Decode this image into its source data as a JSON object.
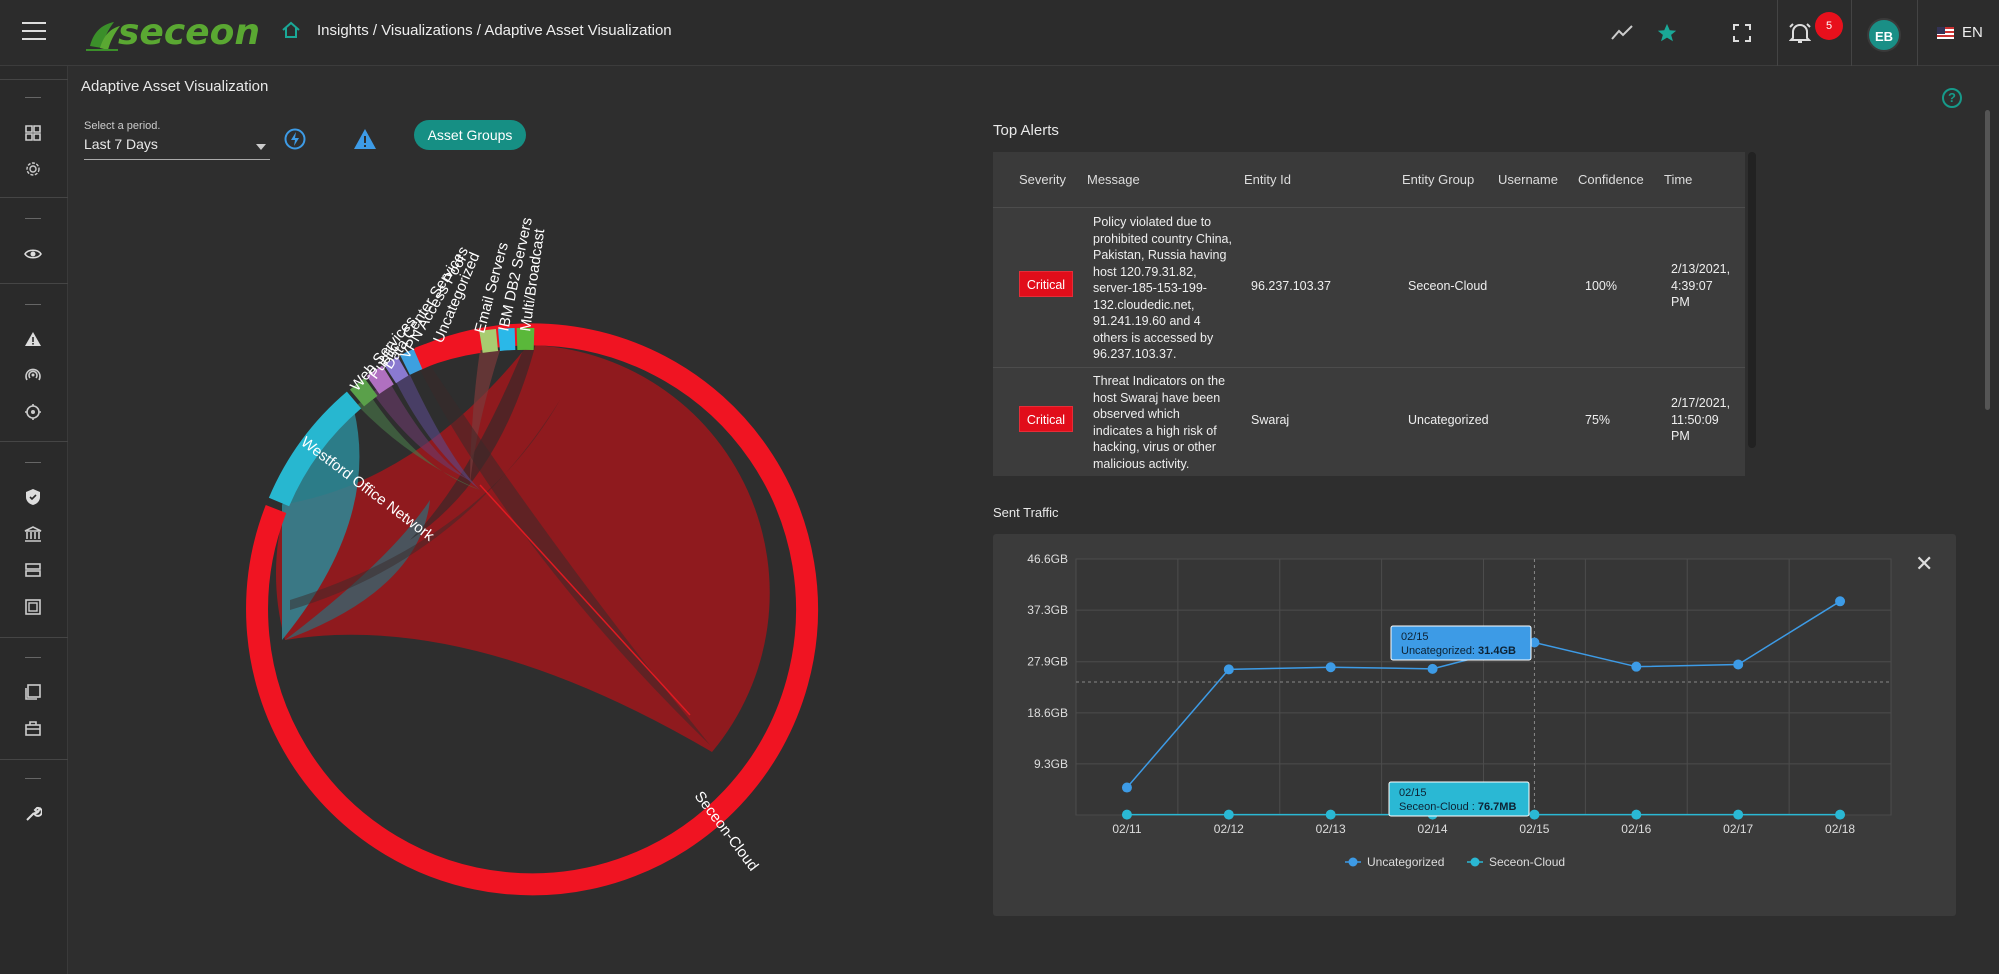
{
  "header": {
    "breadcrumb": "Insights / Visualizations / Adaptive Asset Visualization",
    "notification_count": "5",
    "user_initials": "EB",
    "language": "EN",
    "brand_text": "seceon",
    "brand_color": "#5aa832"
  },
  "page": {
    "title": "Adaptive Asset Visualization",
    "period_label": "Select a period.",
    "period_value": "Last 7 Days",
    "asset_groups_label": "Asset Groups"
  },
  "chord": {
    "groups": [
      "Multi/Broadcast",
      "IBM DB2 Servers",
      "Email Servers",
      "Uncategorized",
      "VPN Access Pool",
      "Data Center Services",
      "Public",
      "Web Services",
      "Westford Office Network",
      "Seceon-Cloud"
    ],
    "colors": {
      "seceon_cloud": "#f01422",
      "westford": "#27b7d0",
      "chord_red": "#8f1a1e",
      "chord_teal": "#2c8a98"
    }
  },
  "alerts": {
    "title": "Top Alerts",
    "columns": [
      "Severity",
      "Message",
      "Entity Id",
      "Entity Group",
      "Username",
      "Confidence",
      "Time"
    ],
    "rows": [
      {
        "severity": "Critical",
        "message": [
          "Policy violated due to",
          "prohibited country China,",
          "Pakistan, Russia having",
          "host 120.79.31.82,",
          "server-185-153-199-",
          "132.cloudedic.net,",
          "91.241.19.60 and 4",
          "others is accessed by",
          "96.237.103.37."
        ],
        "entity_id": "96.237.103.37",
        "entity_group": "Seceon-Cloud",
        "username": "",
        "confidence": "100%",
        "time": [
          "2/13/2021,",
          "4:39:07",
          "PM"
        ]
      },
      {
        "severity": "Critical",
        "message": [
          "Threat Indicators on the",
          "host Swaraj have been",
          "observed which",
          "indicates a high risk of",
          "hacking, virus or other",
          "malicious activity."
        ],
        "entity_id": "Swaraj",
        "entity_group": "Uncategorized",
        "username": "",
        "confidence": "75%",
        "time": [
          "2/17/2021,",
          "11:50:09",
          "PM"
        ]
      }
    ]
  },
  "sent_traffic": {
    "title": "Sent Traffic",
    "tooltip1": {
      "date": "02/15",
      "label": "Uncategorized:",
      "value": "31.4GB"
    },
    "tooltip2": {
      "date": "02/15",
      "label": "Seceon-Cloud :",
      "value": "76.7MB"
    }
  },
  "chart_data": {
    "type": "line",
    "title": "Sent Traffic",
    "categories": [
      "02/11",
      "02/12",
      "02/13",
      "02/14",
      "02/15",
      "02/16",
      "02/17",
      "02/18"
    ],
    "yticks": [
      "46.6GB",
      "37.3GB",
      "27.9GB",
      "18.6GB",
      "9.3GB"
    ],
    "ytick_values": [
      46.6,
      37.3,
      27.9,
      18.6,
      9.3
    ],
    "ylim": [
      0,
      46.6
    ],
    "yunit": "GB",
    "grid": true,
    "legend": "bottom",
    "series": [
      {
        "name": "Uncategorized",
        "color": "#3d9be6",
        "values": [
          5.0,
          26.5,
          26.9,
          26.6,
          31.4,
          27.0,
          27.4,
          38.9
        ]
      },
      {
        "name": "Seceon-Cloud",
        "color": "#2ab8d4",
        "values": [
          0.07,
          0.07,
          0.07,
          0.07,
          0.0767,
          0.07,
          0.07,
          0.07
        ]
      }
    ]
  }
}
